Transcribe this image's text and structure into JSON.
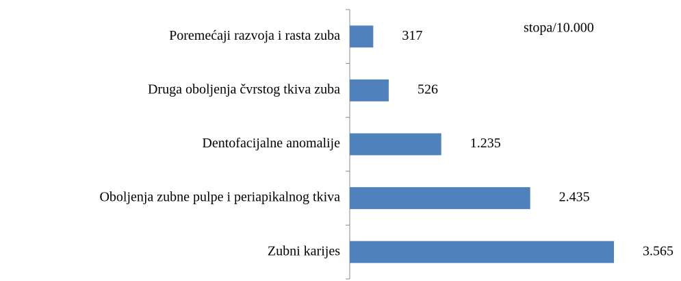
{
  "chart_data": {
    "type": "bar",
    "orientation": "horizontal",
    "annotation": "stopa/10.000",
    "categories": [
      "Poremećaji razvoja i rasta zuba",
      "Druga oboljenja čvrstog tkiva zuba",
      "Dentofacijalne anomalije",
      "Oboljenja zubne pulpe i periapikalnog tkiva",
      "Zubni karijes"
    ],
    "values": [
      317,
      526,
      1235,
      2435,
      3565
    ],
    "value_labels": [
      "317",
      "526",
      "1.235",
      "2.435",
      "3.565"
    ],
    "color": "#4f81bd"
  }
}
